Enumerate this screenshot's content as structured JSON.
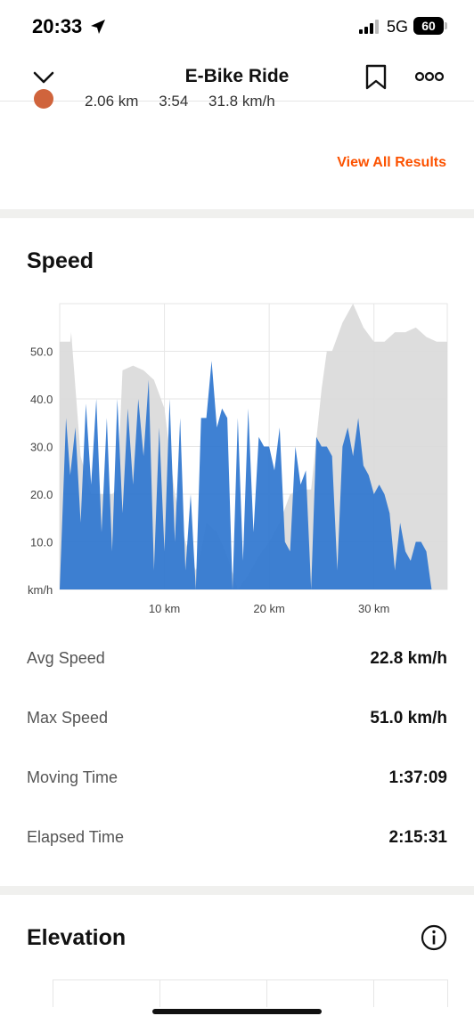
{
  "status_bar": {
    "time": "20:33",
    "network": "5G",
    "battery": "60"
  },
  "nav": {
    "title": "E-Bike Ride"
  },
  "segment": {
    "distance": "2.06 km",
    "time": "3:54",
    "speed": "31.8 km/h"
  },
  "results": {
    "view_all_label": "View All Results"
  },
  "colors": {
    "accent": "#fc5200",
    "speed_fill": "#2f76cf",
    "elevation_fill": "#d9d9d9",
    "segment_dot": "#d0643c"
  },
  "speed_section": {
    "title": "Speed"
  },
  "chart_data": {
    "type": "area",
    "ylim": [
      0,
      60
    ],
    "y_ticks": [
      "10.0",
      "20.0",
      "30.0",
      "40.0",
      "50.0"
    ],
    "y_tick_values": [
      10,
      20,
      30,
      40,
      50
    ],
    "y_unit": "km/h",
    "xlim": [
      0,
      37
    ],
    "x_ticks": [
      "10 km",
      "20 km",
      "30 km"
    ],
    "x_tick_values": [
      10,
      20,
      30
    ],
    "grid": true,
    "series": [
      {
        "x": [
          0,
          1,
          1.1,
          2,
          3,
          4,
          5,
          5.5,
          6,
          7,
          8,
          9,
          10,
          11,
          12,
          13,
          13.5,
          14,
          15,
          16,
          17,
          18,
          19,
          20,
          21,
          22,
          23,
          24,
          25,
          25.5,
          26,
          27,
          28,
          29,
          30,
          31,
          32,
          33,
          34,
          35,
          36,
          37
        ],
        "values": [
          52,
          52,
          54,
          28,
          20,
          20,
          20,
          21,
          46,
          47,
          46,
          44,
          38,
          20,
          10,
          4,
          8,
          14,
          12,
          7,
          0,
          3,
          7,
          10,
          14,
          20,
          21,
          21,
          42,
          50,
          50,
          56,
          60,
          55,
          52,
          52,
          54,
          54,
          55,
          53,
          52,
          52
        ]
      },
      {
        "x": [
          0,
          0.6,
          1,
          1.5,
          2,
          2.5,
          3,
          3.5,
          4,
          4.5,
          5,
          5.5,
          6,
          6.5,
          7,
          7.5,
          8,
          8.5,
          9,
          9.5,
          10,
          10.5,
          11,
          11.5,
          12,
          12.5,
          13,
          13.5,
          14,
          14.5,
          15,
          15.5,
          16,
          16.5,
          17,
          17.5,
          18,
          18.5,
          19,
          19.5,
          20,
          20.5,
          21,
          21.5,
          22,
          22.5,
          23,
          23.5,
          24,
          24.5,
          25,
          25.5,
          26,
          26.5,
          27,
          27.5,
          28,
          28.5,
          29,
          29.5,
          30,
          30.5,
          31,
          31.5,
          32,
          32.5,
          33,
          33.5,
          34,
          34.5,
          35,
          35.5,
          36,
          36.5,
          37
        ],
        "values": [
          0,
          36,
          24,
          34,
          14,
          39,
          22,
          40,
          12,
          36,
          8,
          40,
          16,
          38,
          22,
          40,
          28,
          44,
          4,
          34,
          8,
          40,
          10,
          36,
          4,
          20,
          0,
          36,
          36,
          48,
          34,
          38,
          36,
          0,
          36,
          6,
          38,
          12,
          32,
          30,
          30,
          25,
          34,
          10,
          8,
          30,
          22,
          25,
          0,
          32,
          30,
          30,
          28,
          4,
          30,
          34,
          28,
          36,
          26,
          24,
          20,
          22,
          20,
          16,
          4,
          14,
          8,
          6,
          10,
          10,
          8,
          0,
          0,
          0,
          0
        ]
      }
    ]
  },
  "speed_stats": [
    {
      "label": "Avg Speed",
      "value": "22.8 km/h"
    },
    {
      "label": "Max Speed",
      "value": "51.0 km/h"
    },
    {
      "label": "Moving Time",
      "value": "1:37:09"
    },
    {
      "label": "Elapsed Time",
      "value": "2:15:31"
    }
  ],
  "elevation_section": {
    "title": "Elevation"
  }
}
